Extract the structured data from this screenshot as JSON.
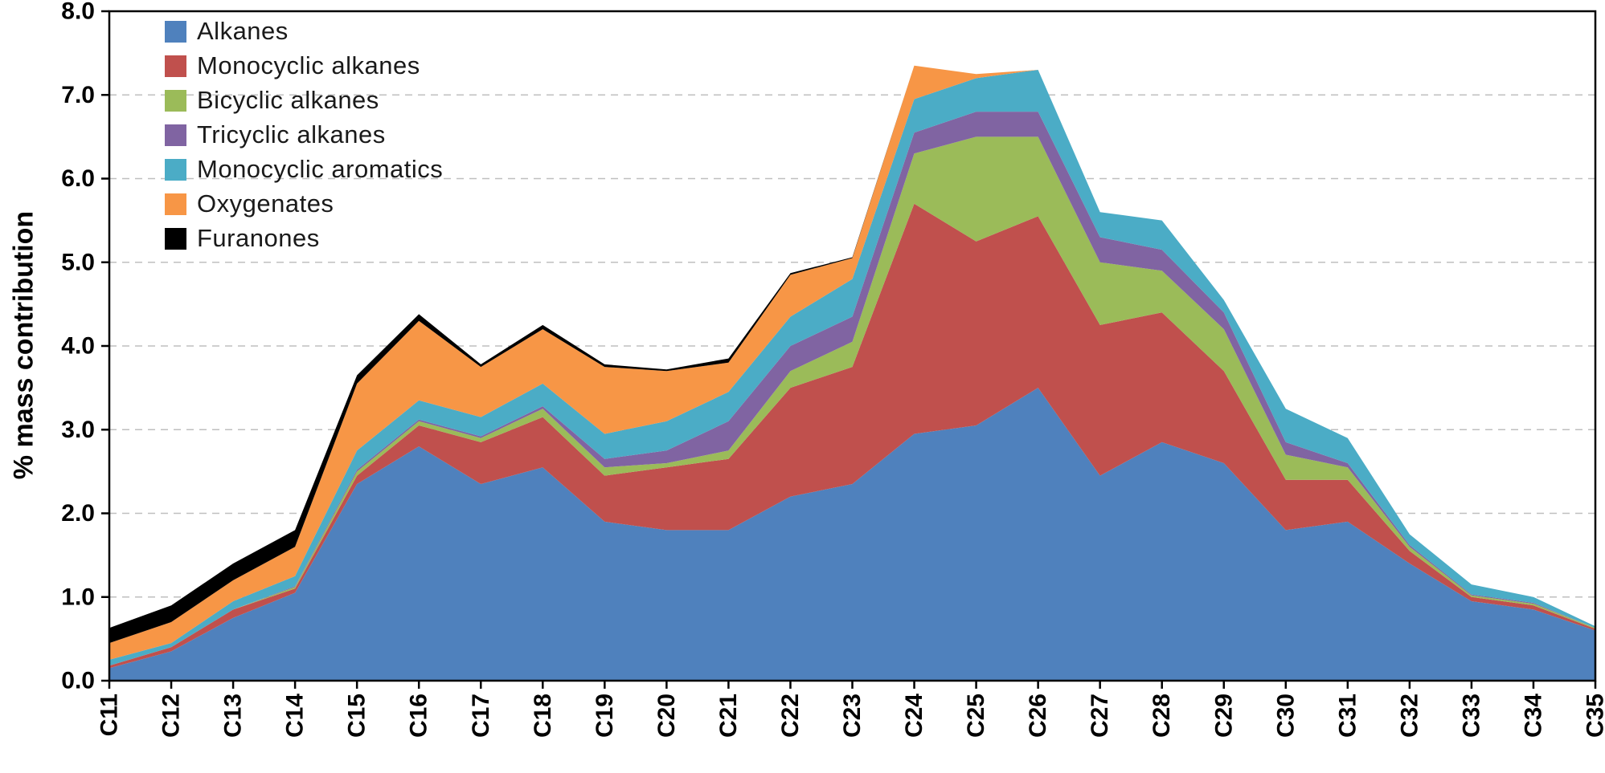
{
  "chart_data": {
    "type": "area",
    "subtype": "stacked-area",
    "title": "",
    "xlabel": "",
    "ylabel": "% mass contribution",
    "ylim": [
      0,
      8
    ],
    "ytick_step": 1,
    "ytick_labels": [
      "0.0",
      "1.0",
      "2.0",
      "3.0",
      "4.0",
      "5.0",
      "6.0",
      "7.0",
      "8.0"
    ],
    "grid": "horizontal-dashed",
    "grid_color": "#bfbfbf",
    "axis_color": "#000000",
    "legend_position": "top-left-inside",
    "categories": [
      "C11",
      "C12",
      "C13",
      "C14",
      "C15",
      "C16",
      "C17",
      "C18",
      "C19",
      "C20",
      "C21",
      "C22",
      "C23",
      "C24",
      "C25",
      "C26",
      "C27",
      "C28",
      "C29",
      "C30",
      "C31",
      "C32",
      "C33",
      "C34",
      "C35"
    ],
    "series": [
      {
        "name": "Alkanes",
        "color": "#4F81BD",
        "values": [
          0.15,
          0.35,
          0.75,
          1.05,
          2.35,
          2.8,
          2.35,
          2.55,
          1.9,
          1.8,
          1.8,
          2.2,
          2.35,
          2.95,
          3.05,
          3.5,
          2.45,
          2.85,
          2.6,
          1.8,
          1.9,
          1.4,
          0.95,
          0.85,
          0.6
        ]
      },
      {
        "name": "Monocyclic alkanes",
        "color": "#C0504D",
        "values": [
          0.03,
          0.05,
          0.1,
          0.05,
          0.1,
          0.25,
          0.5,
          0.6,
          0.55,
          0.75,
          0.85,
          1.3,
          1.4,
          2.75,
          2.2,
          2.05,
          1.8,
          1.55,
          1.1,
          0.6,
          0.5,
          0.15,
          0.05,
          0.05,
          0.02
        ]
      },
      {
        "name": "Bicyclic alkanes",
        "color": "#9BBB59",
        "values": [
          0.0,
          0.0,
          0.0,
          0.02,
          0.05,
          0.05,
          0.05,
          0.1,
          0.1,
          0.05,
          0.1,
          0.2,
          0.3,
          0.6,
          1.25,
          0.95,
          0.75,
          0.5,
          0.5,
          0.3,
          0.15,
          0.05,
          0.02,
          0.02,
          0.01
        ]
      },
      {
        "name": "Tricyclic alkanes",
        "color": "#8064A2",
        "values": [
          0.0,
          0.0,
          0.0,
          0.01,
          0.02,
          0.02,
          0.02,
          0.03,
          0.1,
          0.15,
          0.35,
          0.3,
          0.3,
          0.25,
          0.3,
          0.3,
          0.3,
          0.25,
          0.2,
          0.15,
          0.05,
          0.02,
          0.01,
          0.01,
          0.0
        ]
      },
      {
        "name": "Monocyclic aromatics",
        "color": "#4BACC6",
        "values": [
          0.07,
          0.05,
          0.1,
          0.12,
          0.23,
          0.23,
          0.23,
          0.27,
          0.3,
          0.35,
          0.35,
          0.35,
          0.45,
          0.4,
          0.4,
          0.5,
          0.3,
          0.35,
          0.15,
          0.4,
          0.3,
          0.13,
          0.12,
          0.07,
          0.02
        ]
      },
      {
        "name": "Oxygenates",
        "color": "#F79646",
        "values": [
          0.2,
          0.25,
          0.25,
          0.35,
          0.8,
          0.95,
          0.6,
          0.65,
          0.8,
          0.6,
          0.35,
          0.5,
          0.25,
          0.4,
          0.05,
          0.0,
          0.0,
          0.0,
          0.0,
          0.0,
          0.0,
          0.0,
          0.0,
          0.0,
          0.0
        ]
      },
      {
        "name": "Furanones",
        "color": "#000000",
        "values": [
          0.18,
          0.2,
          0.2,
          0.2,
          0.1,
          0.08,
          0.03,
          0.05,
          0.03,
          0.02,
          0.05,
          0.02,
          0.01,
          0.0,
          0.0,
          0.0,
          0.0,
          0.0,
          0.0,
          0.0,
          0.0,
          0.0,
          0.0,
          0.0,
          0.0
        ]
      }
    ]
  }
}
